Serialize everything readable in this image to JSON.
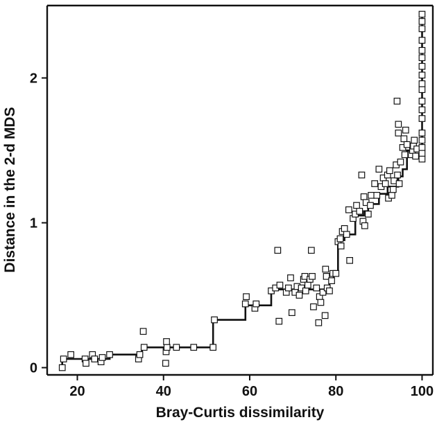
{
  "chart_data": {
    "type": "scatter",
    "title": "",
    "xlabel": "Bray-Curtis dissimilarity",
    "ylabel": "Distance in the 2-d MDS",
    "xlim": [
      13,
      102.5
    ],
    "ylim": [
      -0.05,
      2.5
    ],
    "x_ticks": [
      20,
      40,
      60,
      80,
      100
    ],
    "y_ticks": [
      0,
      1,
      2
    ],
    "grid": false,
    "legend": "none",
    "colors": {
      "line": "#111111",
      "marker_edge": "#111111",
      "marker_fill": "#ffffff"
    },
    "series": [
      {
        "mark": "square",
        "points": [
          [
            16.5,
            0.0
          ],
          [
            16.8,
            0.06
          ],
          [
            18.5,
            0.09
          ],
          [
            21.8,
            0.06
          ],
          [
            22.0,
            0.03
          ],
          [
            23.5,
            0.09
          ],
          [
            24.0,
            0.06
          ],
          [
            25.5,
            0.04
          ],
          [
            25.8,
            0.07
          ],
          [
            27.5,
            0.09
          ],
          [
            34.2,
            0.06
          ],
          [
            34.5,
            0.09
          ],
          [
            35.5,
            0.14
          ],
          [
            35.3,
            0.25
          ],
          [
            40.5,
            0.03
          ],
          [
            40.6,
            0.11
          ],
          [
            40.8,
            0.14
          ],
          [
            40.7,
            0.18
          ],
          [
            43.0,
            0.14
          ],
          [
            47.0,
            0.14
          ],
          [
            51.5,
            0.14
          ],
          [
            51.8,
            0.33
          ],
          [
            59.0,
            0.44
          ],
          [
            59.2,
            0.49
          ],
          [
            61.2,
            0.41
          ],
          [
            61.5,
            0.44
          ],
          [
            65.0,
            0.53
          ],
          [
            66.0,
            0.55
          ],
          [
            66.5,
            0.81
          ],
          [
            66.8,
            0.32
          ],
          [
            67.0,
            0.57
          ],
          [
            68.5,
            0.52
          ],
          [
            69.0,
            0.55
          ],
          [
            69.5,
            0.62
          ],
          [
            69.8,
            0.38
          ],
          [
            70.5,
            0.52
          ],
          [
            71.0,
            0.56
          ],
          [
            71.5,
            0.5
          ],
          [
            72.0,
            0.55
          ],
          [
            72.5,
            0.61
          ],
          [
            72.8,
            0.63
          ],
          [
            73.0,
            0.53
          ],
          [
            73.5,
            0.57
          ],
          [
            74.0,
            0.61
          ],
          [
            74.3,
            0.81
          ],
          [
            74.5,
            0.63
          ],
          [
            74.8,
            0.42
          ],
          [
            75.5,
            0.55
          ],
          [
            76.0,
            0.31
          ],
          [
            76.2,
            0.49
          ],
          [
            76.5,
            0.45
          ],
          [
            77.0,
            0.52
          ],
          [
            77.5,
            0.36
          ],
          [
            77.8,
            0.63
          ],
          [
            77.6,
            0.68
          ],
          [
            78.0,
            0.55
          ],
          [
            78.5,
            0.53
          ],
          [
            79.0,
            0.6
          ],
          [
            79.3,
            0.65
          ],
          [
            80.0,
            0.65
          ],
          [
            80.5,
            0.87
          ],
          [
            81.0,
            0.89
          ],
          [
            81.2,
            0.84
          ],
          [
            81.5,
            0.94
          ],
          [
            82.0,
            0.96
          ],
          [
            82.5,
            0.92
          ],
          [
            83.0,
            1.09
          ],
          [
            83.2,
            0.74
          ],
          [
            84.0,
            1.03
          ],
          [
            84.5,
            1.06
          ],
          [
            84.8,
            1.12
          ],
          [
            85.5,
            1.08
          ],
          [
            86.0,
            1.33
          ],
          [
            86.3,
            1.01
          ],
          [
            86.5,
            1.18
          ],
          [
            86.7,
            0.98
          ],
          [
            87.0,
            1.14
          ],
          [
            87.5,
            1.06
          ],
          [
            88.0,
            1.12
          ],
          [
            88.2,
            1.19
          ],
          [
            89.0,
            1.27
          ],
          [
            89.5,
            1.19
          ],
          [
            90.0,
            1.37
          ],
          [
            90.5,
            1.25
          ],
          [
            91.0,
            1.31
          ],
          [
            91.5,
            1.27
          ],
          [
            92.0,
            1.33
          ],
          [
            92.2,
            1.17
          ],
          [
            92.5,
            1.36
          ],
          [
            93.0,
            1.19
          ],
          [
            93.3,
            1.23
          ],
          [
            93.5,
            1.29
          ],
          [
            94.0,
            1.4
          ],
          [
            94.2,
            1.84
          ],
          [
            94.3,
            1.33
          ],
          [
            94.5,
            1.68
          ],
          [
            94.5,
            1.62
          ],
          [
            94.7,
            1.27
          ],
          [
            95.0,
            1.42
          ],
          [
            95.5,
            1.52
          ],
          [
            95.8,
            1.58
          ],
          [
            96.0,
            1.47
          ],
          [
            96.2,
            1.64
          ],
          [
            96.5,
            1.54
          ],
          [
            97.5,
            1.47
          ],
          [
            97.8,
            1.5
          ],
          [
            98.0,
            1.53
          ],
          [
            98.2,
            1.57
          ],
          [
            98.5,
            1.46
          ],
          [
            98.8,
            1.51
          ],
          [
            100.0,
            1.44
          ],
          [
            100.0,
            1.48
          ],
          [
            100.0,
            1.52
          ],
          [
            100.0,
            1.57
          ],
          [
            100.0,
            1.62
          ],
          [
            100.0,
            1.72
          ],
          [
            100.0,
            1.78
          ],
          [
            100.0,
            1.84
          ],
          [
            100.0,
            1.92
          ],
          [
            100.0,
            1.96
          ],
          [
            100.0,
            2.02
          ],
          [
            100.0,
            2.08
          ],
          [
            100.0,
            2.14
          ],
          [
            100.0,
            2.19
          ],
          [
            100.0,
            2.26
          ],
          [
            100.0,
            2.34
          ],
          [
            100.0,
            2.39
          ],
          [
            100.0,
            2.44
          ]
        ]
      },
      {
        "mark": "step-line",
        "points": [
          [
            16.5,
            0.0
          ],
          [
            16.5,
            0.06
          ],
          [
            27.5,
            0.06
          ],
          [
            27.5,
            0.09
          ],
          [
            35.0,
            0.09
          ],
          [
            35.0,
            0.14
          ],
          [
            51.5,
            0.14
          ],
          [
            51.5,
            0.33
          ],
          [
            59.0,
            0.33
          ],
          [
            59.0,
            0.43
          ],
          [
            65.0,
            0.43
          ],
          [
            65.0,
            0.54
          ],
          [
            78.5,
            0.54
          ],
          [
            78.5,
            0.61
          ],
          [
            79.5,
            0.61
          ],
          [
            79.5,
            0.65
          ],
          [
            80.5,
            0.65
          ],
          [
            80.5,
            0.88
          ],
          [
            82.0,
            0.88
          ],
          [
            82.0,
            0.92
          ],
          [
            84.5,
            0.92
          ],
          [
            84.5,
            1.05
          ],
          [
            86.5,
            1.05
          ],
          [
            86.5,
            1.08
          ],
          [
            87.5,
            1.08
          ],
          [
            87.5,
            1.13
          ],
          [
            90.0,
            1.13
          ],
          [
            90.0,
            1.2
          ],
          [
            92.0,
            1.2
          ],
          [
            92.0,
            1.25
          ],
          [
            94.5,
            1.25
          ],
          [
            94.5,
            1.32
          ],
          [
            95.5,
            1.32
          ],
          [
            95.5,
            1.37
          ],
          [
            96.5,
            1.37
          ],
          [
            96.5,
            1.5
          ],
          [
            98.0,
            1.5
          ],
          [
            98.0,
            1.52
          ],
          [
            100.0,
            1.52
          ],
          [
            100.0,
            2.44
          ]
        ]
      }
    ]
  }
}
